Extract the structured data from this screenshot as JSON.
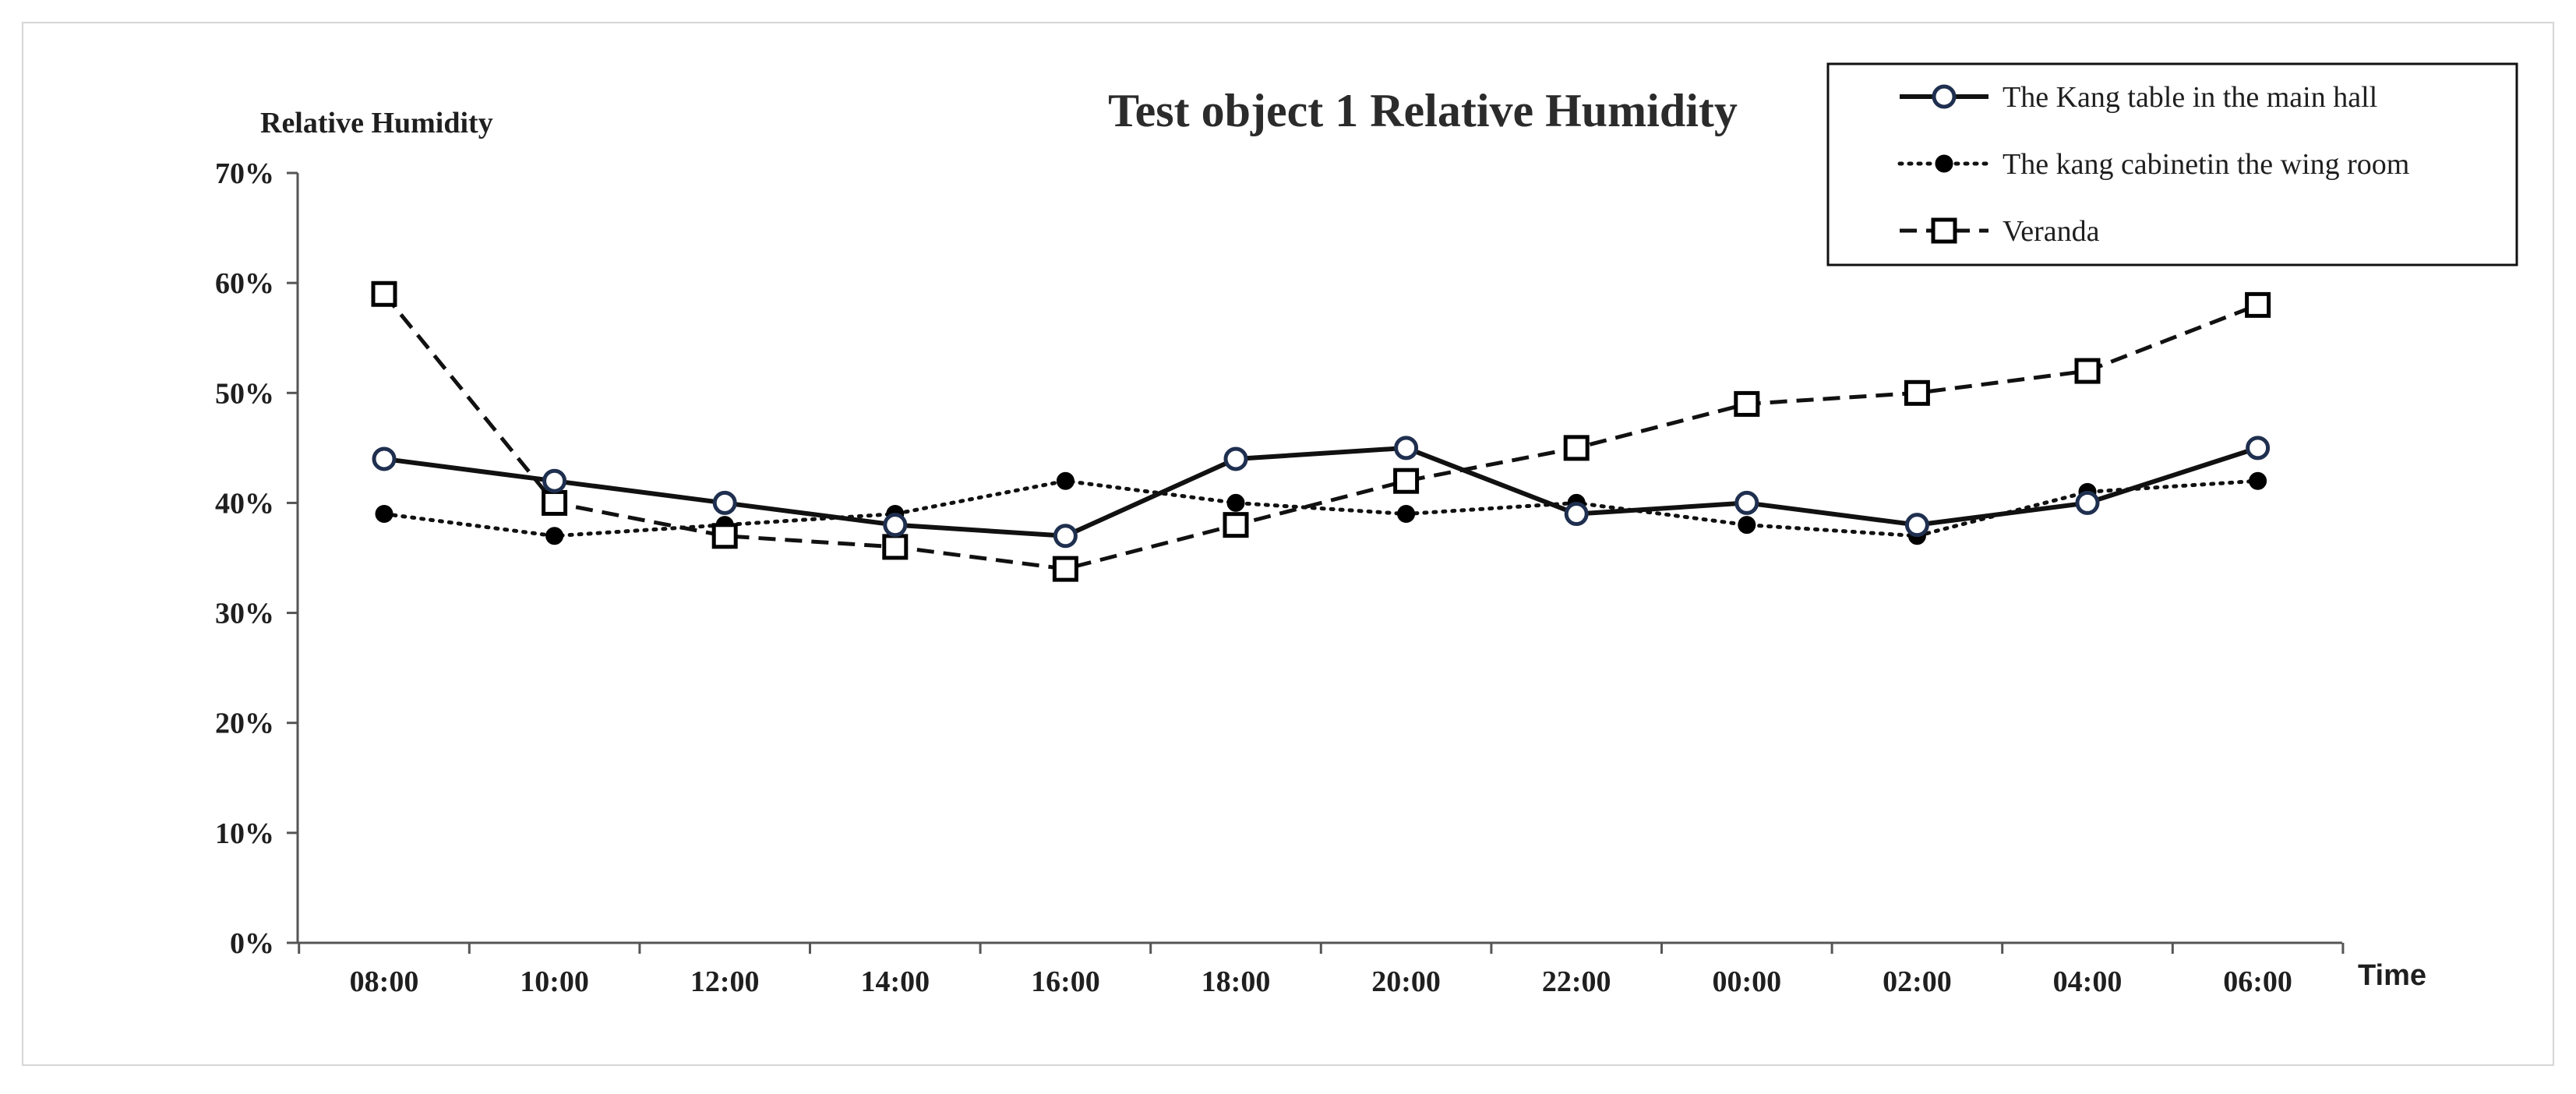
{
  "chart_data": {
    "type": "line",
    "title": "Test object 1 Relative  Humidity",
    "ylabel": "Relative  Humidity",
    "xlabel": "Time",
    "categories": [
      "08:00",
      "10:00",
      "12:00",
      "14:00",
      "16:00",
      "18:00",
      "20:00",
      "22:00",
      "00:00",
      "02:00",
      "04:00",
      "06:00"
    ],
    "ylim": [
      0,
      0.7
    ],
    "yticks": [
      {
        "value": 0.0,
        "label": "0%"
      },
      {
        "value": 0.1,
        "label": "10%"
      },
      {
        "value": 0.2,
        "label": "20%"
      },
      {
        "value": 0.3,
        "label": "30%"
      },
      {
        "value": 0.4,
        "label": "40%"
      },
      {
        "value": 0.5,
        "label": "50%"
      },
      {
        "value": 0.6,
        "label": "60%"
      },
      {
        "value": 0.7,
        "label": "70%"
      }
    ],
    "legend_position": "top-right",
    "series": [
      {
        "name": "The Kang table in the main hall",
        "line_style": "solid",
        "marker": "open-circle",
        "values": [
          0.44,
          0.42,
          0.4,
          0.38,
          0.37,
          0.44,
          0.45,
          0.39,
          0.4,
          0.38,
          0.4,
          0.45
        ]
      },
      {
        "name": "The kang cabinetin the wing room",
        "line_style": "dotted",
        "marker": "filled-circle",
        "values": [
          0.39,
          0.37,
          0.38,
          0.39,
          0.42,
          0.4,
          0.39,
          0.4,
          0.38,
          0.37,
          0.41,
          0.42
        ]
      },
      {
        "name": "Veranda",
        "line_style": "dashed",
        "marker": "open-square",
        "values": [
          0.59,
          0.4,
          0.37,
          0.36,
          0.34,
          0.38,
          0.42,
          0.45,
          0.49,
          0.5,
          0.52,
          0.58
        ]
      }
    ]
  },
  "colors": {
    "line": "#111111",
    "circle_outline": "#1f2f4f",
    "axis": "#555555",
    "frame": "#d6d6d6"
  }
}
